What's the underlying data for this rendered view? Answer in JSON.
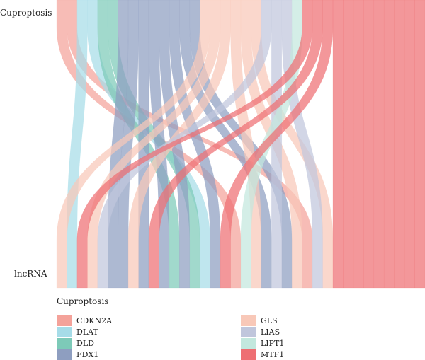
{
  "axis_labels": {
    "top": "Cuproptosis",
    "bottom": "lncRNA"
  },
  "legend": {
    "title": "Cuproptosis",
    "items": [
      {
        "label": "CDKN2A",
        "color": "#F4A29A"
      },
      {
        "label": "DLAT",
        "color": "#A6DCE8"
      },
      {
        "label": "DLD",
        "color": "#7DCAB8"
      },
      {
        "label": "FDX1",
        "color": "#8E9EC0"
      },
      {
        "label": "GLS",
        "color": "#F8C8B8"
      },
      {
        "label": "LIAS",
        "color": "#C0C6DC"
      },
      {
        "label": "LIPT1",
        "color": "#C3E8DE"
      },
      {
        "label": "MTF1",
        "color": "#EE6F73"
      }
    ]
  },
  "chart_data": {
    "type": "alluvial",
    "top_axis": "Cuproptosis",
    "bottom_axis": "lncRNA",
    "categories": [
      "CDKN2A",
      "DLAT",
      "DLD",
      "FDX1",
      "GLS",
      "LIAS",
      "LIPT1",
      "MTF1"
    ],
    "top_order": [
      "CDKN2A",
      "DLAT",
      "DLD",
      "FDX1",
      "GLS",
      "LIAS",
      "LIPT1",
      "MTF1"
    ],
    "flows": [
      {
        "gene": "CDKN2A",
        "lncRNA_index": 17
      },
      {
        "gene": "CDKN2A",
        "lncRNA_index": 24
      },
      {
        "gene": "DLAT",
        "lncRNA_index": 1
      },
      {
        "gene": "DLAT",
        "lncRNA_index": 14
      },
      {
        "gene": "DLD",
        "lncRNA_index": 11
      },
      {
        "gene": "DLD",
        "lncRNA_index": 13
      },
      {
        "gene": "FDX1",
        "lncRNA_index": 5
      },
      {
        "gene": "FDX1",
        "lncRNA_index": 6
      },
      {
        "gene": "FDX1",
        "lncRNA_index": 8
      },
      {
        "gene": "FDX1",
        "lncRNA_index": 10
      },
      {
        "gene": "FDX1",
        "lncRNA_index": 12
      },
      {
        "gene": "FDX1",
        "lncRNA_index": 15
      },
      {
        "gene": "FDX1",
        "lncRNA_index": 20
      },
      {
        "gene": "FDX1",
        "lncRNA_index": 22
      },
      {
        "gene": "GLS",
        "lncRNA_index": 0
      },
      {
        "gene": "GLS",
        "lncRNA_index": 3
      },
      {
        "gene": "GLS",
        "lncRNA_index": 7
      },
      {
        "gene": "GLS",
        "lncRNA_index": 19
      },
      {
        "gene": "GLS",
        "lncRNA_index": 23
      },
      {
        "gene": "GLS",
        "lncRNA_index": 26
      },
      {
        "gene": "LIAS",
        "lncRNA_index": 4
      },
      {
        "gene": "LIAS",
        "lncRNA_index": 21
      },
      {
        "gene": "LIAS",
        "lncRNA_index": 25
      },
      {
        "gene": "LIPT1",
        "lncRNA_index": 18
      },
      {
        "gene": "MTF1",
        "lncRNA_index": 2
      },
      {
        "gene": "MTF1",
        "lncRNA_index": 9
      },
      {
        "gene": "MTF1",
        "lncRNA_index": 16
      },
      {
        "gene": "MTF1",
        "lncRNA_index": 27
      },
      {
        "gene": "MTF1",
        "lncRNA_index": 28
      },
      {
        "gene": "MTF1",
        "lncRNA_index": 29
      },
      {
        "gene": "MTF1",
        "lncRNA_index": 30
      },
      {
        "gene": "MTF1",
        "lncRNA_index": 31
      },
      {
        "gene": "MTF1",
        "lncRNA_index": 32
      },
      {
        "gene": "MTF1",
        "lncRNA_index": 33
      },
      {
        "gene": "MTF1",
        "lncRNA_index": 34
      },
      {
        "gene": "MTF1",
        "lncRNA_index": 35
      }
    ]
  }
}
